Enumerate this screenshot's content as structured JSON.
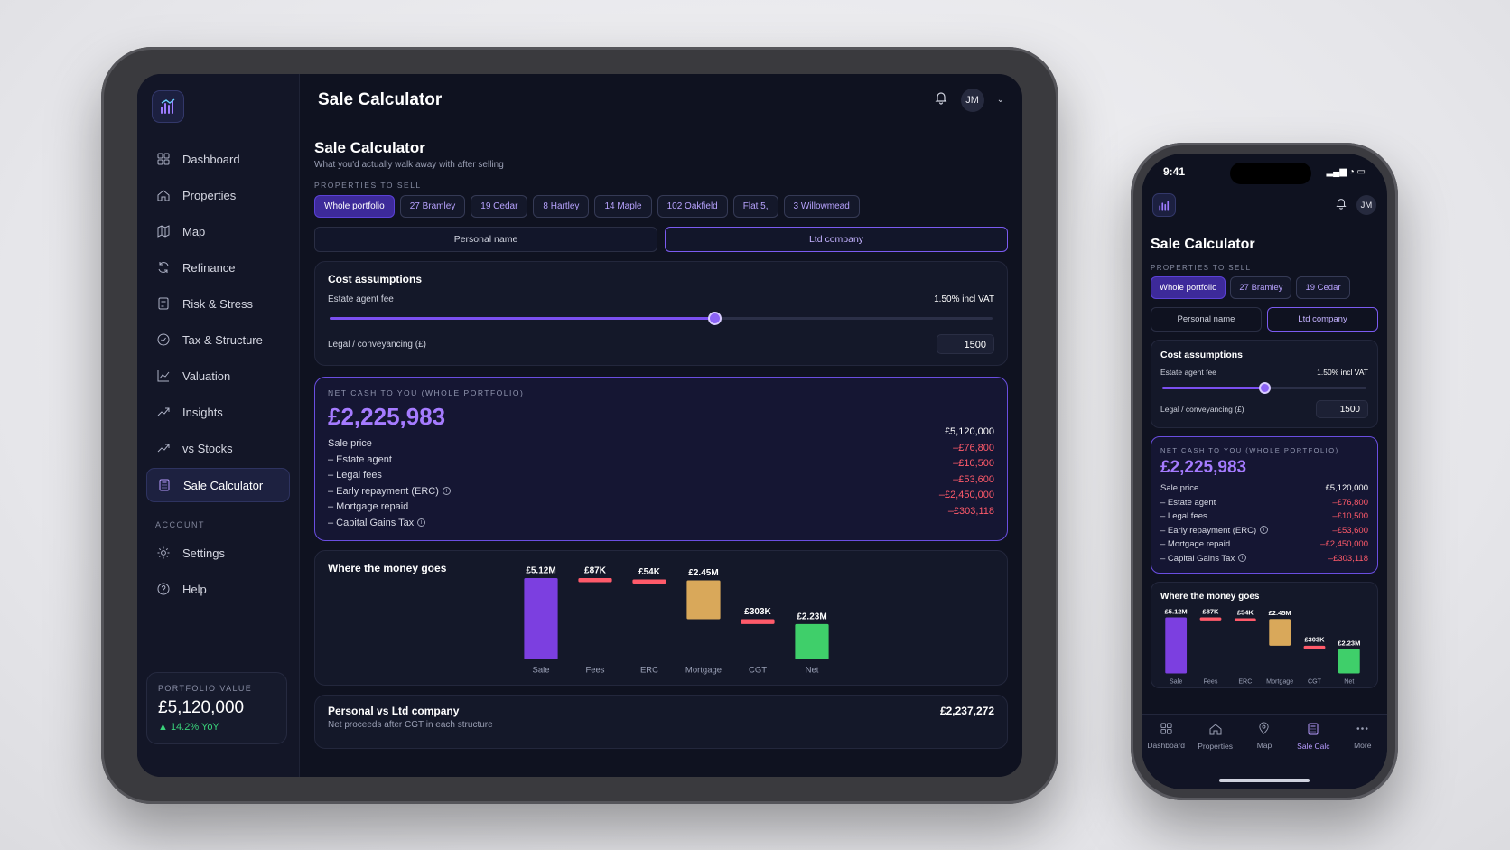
{
  "app": {
    "title": "Sale Calculator",
    "user_initials": "JM"
  },
  "sidebar": {
    "items": [
      {
        "label": "Dashboard",
        "icon": "dashboard-icon"
      },
      {
        "label": "Properties",
        "icon": "home-icon"
      },
      {
        "label": "Map",
        "icon": "map-icon"
      },
      {
        "label": "Refinance",
        "icon": "refresh-icon"
      },
      {
        "label": "Risk & Stress",
        "icon": "document-icon"
      },
      {
        "label": "Tax & Structure",
        "icon": "check-circle-icon"
      },
      {
        "label": "Valuation",
        "icon": "line-chart-icon"
      },
      {
        "label": "Insights",
        "icon": "trend-icon"
      },
      {
        "label": "vs Stocks",
        "icon": "trend-icon"
      },
      {
        "label": "Sale Calculator",
        "icon": "calculator-icon",
        "active": true
      }
    ],
    "account_label": "ACCOUNT",
    "account_items": [
      {
        "label": "Settings",
        "icon": "gear-icon"
      },
      {
        "label": "Help",
        "icon": "help-icon"
      }
    ],
    "portfolio": {
      "label": "PORTFOLIO VALUE",
      "value": "£5,120,000",
      "change": "▲ 14.2% YoY"
    }
  },
  "page": {
    "title": "Sale Calculator",
    "subtitle": "What you'd actually walk away with after selling",
    "properties_label": "PROPERTIES TO SELL",
    "chips": [
      "Whole portfolio",
      "27 Bramley",
      "19 Cedar",
      "8 Hartley",
      "14 Maple",
      "102 Oakfield",
      "Flat 5,",
      "3 Willowmead"
    ],
    "phone_chips": [
      "Whole portfolio",
      "27 Bramley",
      "19 Cedar"
    ],
    "structure": {
      "personal": "Personal name",
      "ltd": "Ltd company"
    }
  },
  "assumptions": {
    "title": "Cost assumptions",
    "agent_label": "Estate agent fee",
    "agent_value": "1.50% incl VAT",
    "agent_slider_fraction": 0.58,
    "phone_slider_fraction": 0.5,
    "legal_label": "Legal / conveyancing (£)",
    "legal_value": "1500"
  },
  "net": {
    "label": "NET CASH TO YOU (WHOLE PORTFOLIO)",
    "value": "£2,225,983",
    "rows": [
      {
        "label": "Sale price",
        "value": "£5,120,000",
        "neg": false
      },
      {
        "label": "– Estate agent",
        "value": "–£76,800",
        "neg": true
      },
      {
        "label": "– Legal fees",
        "value": "–£10,500",
        "neg": true
      },
      {
        "label": "– Early repayment (ERC)",
        "value": "–£53,600",
        "neg": true,
        "info": true
      },
      {
        "label": "– Mortgage repaid",
        "value": "–£2,450,000",
        "neg": true
      },
      {
        "label": "– Capital Gains Tax",
        "value": "–£303,118",
        "neg": true,
        "info": true
      }
    ]
  },
  "waterfall": {
    "title": "Where the money goes"
  },
  "chart_data": {
    "type": "bar",
    "title": "Where the money goes",
    "categories": [
      "Sale",
      "Fees",
      "ERC",
      "Mortgage",
      "CGT",
      "Net"
    ],
    "values": [
      5120000,
      -87300,
      -53600,
      -2450000,
      -303118,
      2225983
    ],
    "labels": [
      "£5.12M",
      "£87K",
      "£54K",
      "£2.45M",
      "£303K",
      "£2.23M"
    ],
    "colors": [
      "#7c3fe0",
      "#ff5a6a",
      "#ff5a6a",
      "#d9a85a",
      "#ff5a6a",
      "#3fcf6a"
    ]
  },
  "comparison": {
    "title": "Personal vs Ltd company",
    "subtitle": "Net proceeds after CGT in each structure",
    "value": "£2,237,272"
  },
  "phone": {
    "time": "9:41",
    "tabs": [
      {
        "label": "Dashboard",
        "icon": "grid-icon"
      },
      {
        "label": "Properties",
        "icon": "home-icon"
      },
      {
        "label": "Map",
        "icon": "pin-icon"
      },
      {
        "label": "Sale Calc",
        "icon": "calculator-icon",
        "active": true
      },
      {
        "label": "More",
        "icon": "more-icon"
      }
    ]
  }
}
